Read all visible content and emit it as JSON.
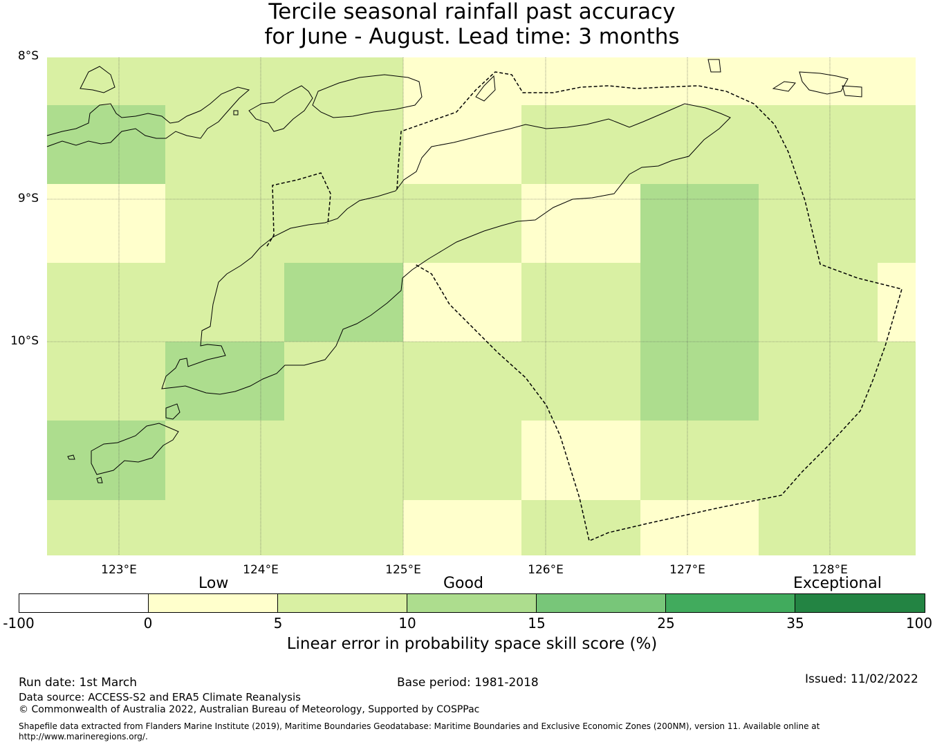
{
  "title": {
    "line1": "Tercile seasonal rainfall past accuracy",
    "line2": "for June - August. Lead time: 3 months"
  },
  "map": {
    "lat_labels": [
      "8°S",
      "9°S",
      "10°S"
    ],
    "lon_labels": [
      "123°E",
      "124°E",
      "125°E",
      "126°E",
      "127°E",
      "128°E"
    ],
    "grid_scores": [
      [
        7.5,
        7.5,
        7.5,
        2.5,
        2.5,
        2.5,
        2.5,
        2.5
      ],
      [
        12.5,
        7.5,
        7.5,
        2.5,
        7.5,
        7.5,
        7.5,
        7.5
      ],
      [
        2.5,
        7.5,
        7.5,
        7.5,
        2.5,
        12.5,
        7.5,
        7.5
      ],
      [
        7.5,
        7.5,
        12.5,
        2.5,
        7.5,
        12.5,
        7.5,
        2.5
      ],
      [
        7.5,
        12.5,
        7.5,
        7.5,
        7.5,
        12.5,
        7.5,
        7.5
      ],
      [
        12.5,
        7.5,
        7.5,
        7.5,
        2.5,
        7.5,
        7.5,
        7.5
      ],
      [
        7.5,
        7.5,
        7.5,
        2.5,
        7.5,
        2.5,
        7.5,
        7.5
      ]
    ]
  },
  "legend": {
    "categories": [
      "Low",
      "Good",
      "Exceptional"
    ],
    "ticks": [
      "-100",
      "0",
      "5",
      "10",
      "15",
      "25",
      "35",
      "100"
    ],
    "bins": [
      {
        "min": -100,
        "max": 0,
        "color": "#ffffff"
      },
      {
        "min": 0,
        "max": 5,
        "color": "#ffffcc"
      },
      {
        "min": 5,
        "max": 10,
        "color": "#d9f0a3"
      },
      {
        "min": 10,
        "max": 15,
        "color": "#addd8e"
      },
      {
        "min": 15,
        "max": 25,
        "color": "#78c679"
      },
      {
        "min": 25,
        "max": 35,
        "color": "#41ab5d"
      },
      {
        "min": 35,
        "max": 100,
        "color": "#238443"
      }
    ],
    "label": "Linear error in probability space skill score (%)"
  },
  "footer": {
    "run_date": "Run date: 1st March",
    "base_period": "Base period: 1981-2018",
    "issued": "Issued: 11/02/2022",
    "data_source": "Data source: ACCESS-S2 and ERA5 Climate Reanalysis",
    "copyright": "© Commonwealth of Australia 2022, Australian Bureau of Meteorology, Supported by COSPPac",
    "shapefile_1": "Shapefile data extracted from Flanders Marine Institute (2019), Maritime Boundaries Geodatabase: Maritime Boundaries and Exclusive Economic Zones (200NM), version 11. Available online at",
    "shapefile_2": "http://www.marineregions.org/."
  }
}
